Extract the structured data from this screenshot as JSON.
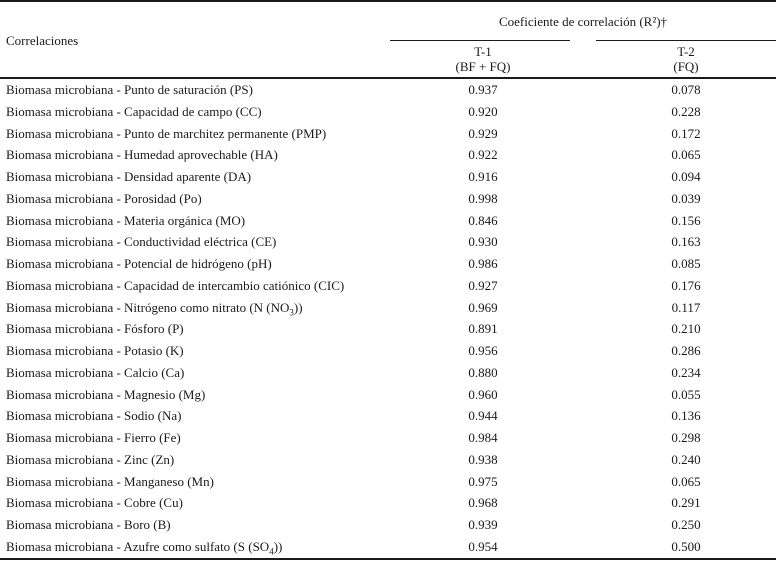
{
  "header": {
    "col_label": "Correlaciones",
    "group_label": "Coeficiente de correlación (R²)†",
    "t1_label": "T-1",
    "t1_sub": "(BF + FQ)",
    "t2_label": "T-2",
    "t2_sub": "(FQ)"
  },
  "rows": [
    {
      "pre": "Biomasa microbiana - Punto de saturación (PS)",
      "sub": "",
      "post": "",
      "t1": "0.937",
      "t2": "0.078"
    },
    {
      "pre": "Biomasa microbiana - Capacidad de campo (CC)",
      "sub": "",
      "post": "",
      "t1": "0.920",
      "t2": "0.228"
    },
    {
      "pre": "Biomasa microbiana - Punto de marchitez permanente (PMP)",
      "sub": "",
      "post": "",
      "t1": "0.929",
      "t2": "0.172"
    },
    {
      "pre": "Biomasa microbiana - Humedad aprovechable (HA)",
      "sub": "",
      "post": "",
      "t1": "0.922",
      "t2": "0.065"
    },
    {
      "pre": "Biomasa microbiana - Densidad aparente (DA)",
      "sub": "",
      "post": "",
      "t1": "0.916",
      "t2": "0.094"
    },
    {
      "pre": "Biomasa microbiana - Porosidad (Po)",
      "sub": "",
      "post": "",
      "t1": "0.998",
      "t2": "0.039"
    },
    {
      "pre": "Biomasa microbiana - Materia orgánica (MO)",
      "sub": "",
      "post": "",
      "t1": "0.846",
      "t2": "0.156"
    },
    {
      "pre": "Biomasa microbiana - Conductividad eléctrica (CE)",
      "sub": "",
      "post": "",
      "t1": "0.930",
      "t2": "0.163"
    },
    {
      "pre": "Biomasa microbiana - Potencial de hidrógeno (pH)",
      "sub": "",
      "post": "",
      "t1": "0.986",
      "t2": "0.085"
    },
    {
      "pre": "Biomasa microbiana - Capacidad de intercambio catiónico (CIC)",
      "sub": "",
      "post": "",
      "t1": "0.927",
      "t2": "0.176"
    },
    {
      "pre": "Biomasa microbiana - Nitrógeno como nitrato (N (NO",
      "sub": "3",
      "post": "))",
      "t1": "0.969",
      "t2": "0.117"
    },
    {
      "pre": "Biomasa microbiana - Fósforo (P)",
      "sub": "",
      "post": "",
      "t1": "0.891",
      "t2": "0.210"
    },
    {
      "pre": "Biomasa microbiana - Potasio (K)",
      "sub": "",
      "post": "",
      "t1": "0.956",
      "t2": "0.286"
    },
    {
      "pre": "Biomasa microbiana - Calcio (Ca)",
      "sub": "",
      "post": "",
      "t1": "0.880",
      "t2": "0.234"
    },
    {
      "pre": "Biomasa microbiana - Magnesio (Mg)",
      "sub": "",
      "post": "",
      "t1": "0.960",
      "t2": "0.055"
    },
    {
      "pre": "Biomasa microbiana - Sodio (Na)",
      "sub": "",
      "post": "",
      "t1": "0.944",
      "t2": "0.136"
    },
    {
      "pre": "Biomasa microbiana - Fierro (Fe)",
      "sub": "",
      "post": "",
      "t1": "0.984",
      "t2": "0.298"
    },
    {
      "pre": "Biomasa microbiana - Zinc (Zn)",
      "sub": "",
      "post": "",
      "t1": "0.938",
      "t2": "0.240"
    },
    {
      "pre": "Biomasa microbiana - Manganeso (Mn)",
      "sub": "",
      "post": "",
      "t1": "0.975",
      "t2": "0.065"
    },
    {
      "pre": "Biomasa microbiana - Cobre (Cu)",
      "sub": "",
      "post": "",
      "t1": "0.968",
      "t2": "0.291"
    },
    {
      "pre": "Biomasa microbiana - Boro (B)",
      "sub": "",
      "post": "",
      "t1": "0.939",
      "t2": "0.250"
    },
    {
      "pre": "Biomasa microbiana - Azufre como sulfato (S (SO",
      "sub": "4",
      "post": "))",
      "t1": "0.954",
      "t2": "0.500"
    }
  ]
}
